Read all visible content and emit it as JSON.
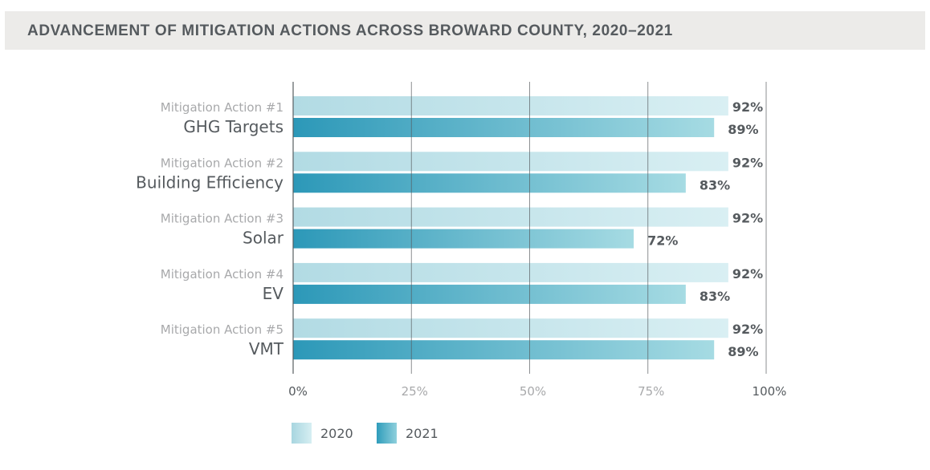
{
  "header": {
    "title": "ADVANCEMENT OF MITIGATION ACTIONS ACROSS BROWARD COUNTY, 2020–2021"
  },
  "colors": {
    "bar_2020_start": "#b2dbe4",
    "bar_2020_end": "#d9eff3",
    "bar_2021_start": "#2c98b8",
    "bar_2021_end": "#a6dbe3",
    "gridline": "#555a5e",
    "label_light": "#a8a9ab",
    "label_dark": "#555a5e"
  },
  "chart_data": {
    "type": "bar",
    "orientation": "horizontal",
    "title": "ADVANCEMENT OF MITIGATION ACTIONS ACROSS BROWARD COUNTY, 2020–2021",
    "categories": [
      {
        "subtitle": "Mitigation Action #1",
        "name": "GHG Targets"
      },
      {
        "subtitle": "Mitigation Action #2",
        "name": "Building Efficiency"
      },
      {
        "subtitle": "Mitigation Action #3",
        "name": "Solar"
      },
      {
        "subtitle": "Mitigation Action #4",
        "name": "EV"
      },
      {
        "subtitle": "Mitigation Action #5",
        "name": "VMT"
      }
    ],
    "series": [
      {
        "name": "2020",
        "values": [
          92,
          92,
          92,
          92,
          92
        ],
        "labels": [
          "92%",
          "92%",
          "92%",
          "92%",
          "92%"
        ]
      },
      {
        "name": "2021",
        "values": [
          89,
          83,
          72,
          83,
          89
        ],
        "labels": [
          "89%",
          "83%",
          "72%",
          "83%",
          "89%"
        ]
      }
    ],
    "xlim": [
      0,
      100
    ],
    "xticks": [
      "0%",
      "25%",
      "50%",
      "75%",
      "100%"
    ],
    "xtick_values": [
      0,
      25,
      50,
      75,
      100
    ],
    "grid": true,
    "legend": "bottom-left"
  }
}
